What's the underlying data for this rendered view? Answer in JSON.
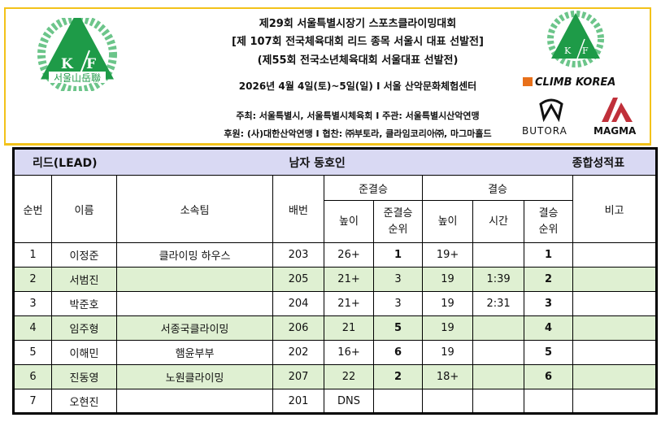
{
  "header": {
    "title_lines": [
      "제29회 서울특별시장기 스포츠클라이밍대회",
      "[제 107회 전국체육대회 리드 종목 서울시 대표 선발전]",
      "(제55회 전국소년체육대회 서울대표 선발전)"
    ],
    "date_venue": "2026년 4월 4일(토)~5일(일) I 서울 산악문화체험센터",
    "host": "주최: 서울특별시, 서울특별시체육회  I  주관: 서울특별시산악연맹",
    "sponsor": "후원: (사)대한산악연맹  I  협찬: ㈜부토라, 클라임코리아㈜, 마그마홀드",
    "logo_left_text": "K F 서울山岳聯",
    "logo_right_text": "K F",
    "sponsors": {
      "climb": "CLIMB KOREA",
      "butora": "BUTORA",
      "magma": "MAGMA"
    },
    "colors": {
      "border": "#f3c21a",
      "logo_green": "#1e9b48",
      "magma": "#c0303a",
      "climb_orange": "#e8701a"
    }
  },
  "table": {
    "discipline": "리드(LEAD)",
    "category": "남자 동호인",
    "sheet": "종합성적표",
    "headers": {
      "no": "순번",
      "name": "이름",
      "team": "소속팀",
      "bib": "배번",
      "semi": "준결승",
      "final": "결승",
      "note": "비고",
      "semi_height": "높이",
      "semi_rank": [
        "준결승",
        "순위"
      ],
      "final_height": "높이",
      "final_time": "시간",
      "final_rank": [
        "결승",
        "순위"
      ]
    },
    "rows": [
      {
        "no": "1",
        "name": "이정준",
        "team": "클라이밍 하우스",
        "bib": "203",
        "sh": "26+",
        "sr": "1",
        "fh": "19+",
        "ft": "",
        "fr": "1",
        "note": ""
      },
      {
        "no": "2",
        "name": "서범진",
        "team": "",
        "bib": "205",
        "sh": "21+",
        "sr": "3",
        "fh": "19",
        "ft": "1:39",
        "fr": "2",
        "note": ""
      },
      {
        "no": "3",
        "name": "박준호",
        "team": "",
        "bib": "204",
        "sh": "21+",
        "sr": "3",
        "fh": "19",
        "ft": "2:31",
        "fr": "3",
        "note": ""
      },
      {
        "no": "4",
        "name": "임주형",
        "team": "서종국클라이밍",
        "bib": "206",
        "sh": "21",
        "sr": "5",
        "fh": "19",
        "ft": "",
        "fr": "4",
        "note": ""
      },
      {
        "no": "5",
        "name": "이해민",
        "team": "햄윤부부",
        "bib": "202",
        "sh": "16+",
        "sr": "6",
        "fh": "19",
        "ft": "",
        "fr": "5",
        "note": ""
      },
      {
        "no": "6",
        "name": "진동영",
        "team": "노원클라이밍",
        "bib": "207",
        "sh": "22",
        "sr": "2",
        "fh": "18+",
        "ft": "",
        "fr": "6",
        "note": ""
      },
      {
        "no": "7",
        "name": "오현진",
        "team": "",
        "bib": "201",
        "sh": "DNS",
        "sr": "",
        "fh": "",
        "ft": "",
        "fr": "",
        "note": ""
      }
    ],
    "row_shading": "#dff0d2",
    "title_shading": "#d9d9f3"
  }
}
